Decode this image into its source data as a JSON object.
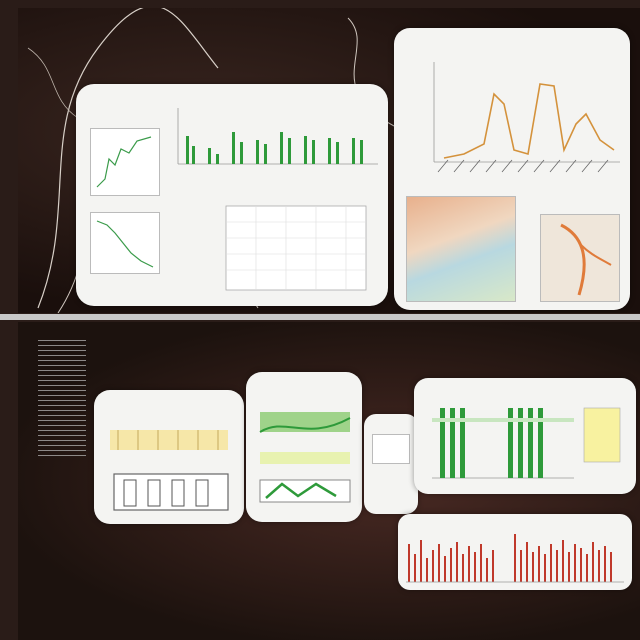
{
  "colors": {
    "background": "#2a1c18",
    "card": "#f4f4f2",
    "bar_green": "#2e9a3a",
    "bar_red": "#c0392b",
    "line_orange": "#d4923c",
    "line_green": "#3a9b4a"
  },
  "top_panel": {
    "headline_lines": []
  },
  "bottom_panel": {
    "headline_left_lines": [],
    "headline_right_lines": [],
    "caption_lines": []
  },
  "icons": [
    "vine-decoration-icon",
    "stats-sheet-icon"
  ]
}
